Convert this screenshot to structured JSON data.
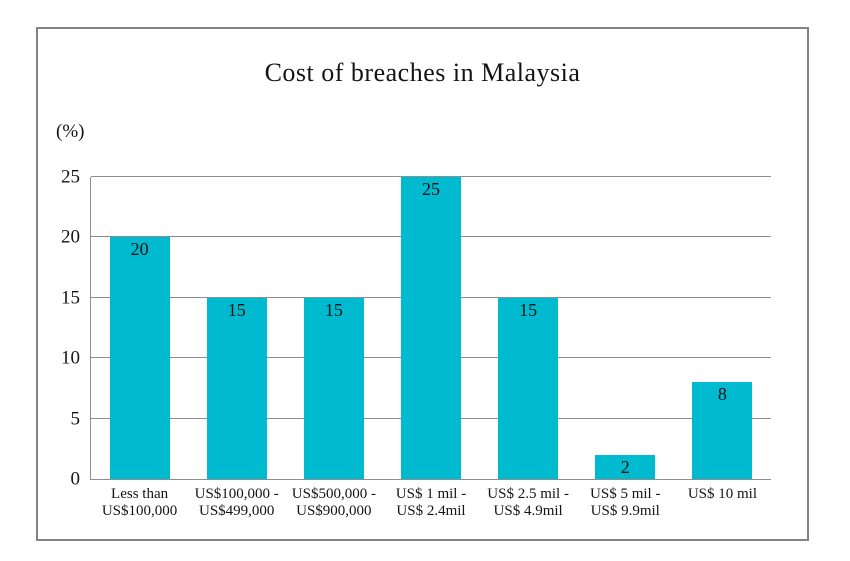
{
  "chart_data": {
    "type": "bar",
    "title": "Cost of breaches in Malaysia",
    "ylabel": "(%)",
    "xlabel": "",
    "categories": [
      "Less than\nUS$100,000",
      "US$100,000 -\nUS$499,000",
      "US$500,000 -\nUS$900,000",
      "US$ 1 mil -\nUS$ 2.4mil",
      "US$ 2.5 mil -\nUS$ 4.9mil",
      "US$ 5 mil -\nUS$ 9.9mil",
      "US$ 10 mil"
    ],
    "values": [
      20,
      15,
      15,
      25,
      15,
      2,
      8
    ],
    "value_label_position": "inside-top",
    "ylim": [
      0,
      25
    ],
    "yticks": [
      0,
      5,
      10,
      15,
      20,
      25
    ],
    "grid": "horizontal",
    "legend": "none",
    "colors": {
      "bar": "#00bacf",
      "gridline": "#8e8e8e",
      "axis": "#8e8e8e",
      "frame_border": "#838383",
      "text": "#141414",
      "background": "#ffffff"
    }
  }
}
